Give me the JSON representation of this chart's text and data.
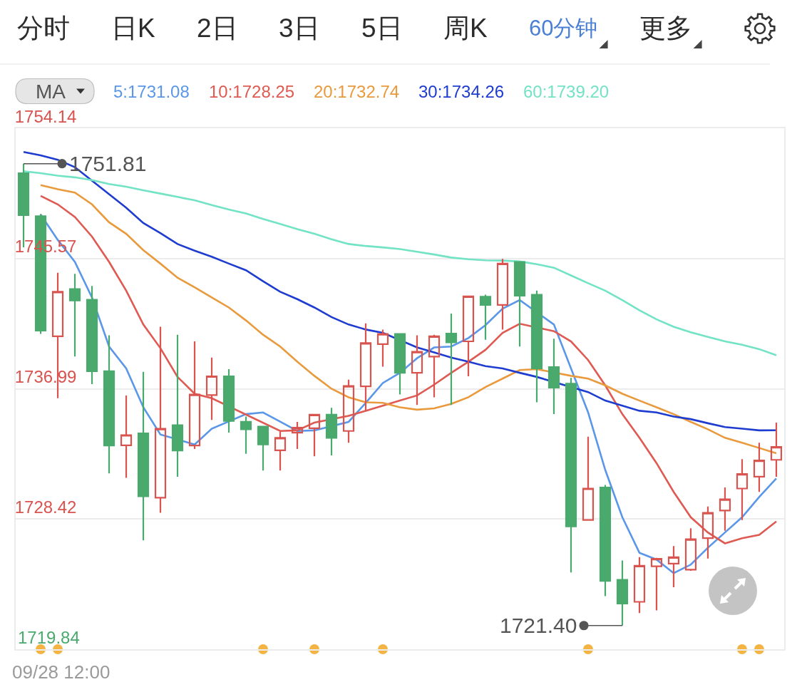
{
  "chart_data": {
    "type": "candlestick",
    "categories": [
      null,
      null,
      null,
      null,
      null,
      null,
      null,
      null,
      null,
      null,
      null,
      null,
      null,
      null,
      null,
      null,
      null,
      null,
      null,
      null,
      null,
      null,
      null,
      null,
      null,
      null,
      null,
      null,
      null,
      null,
      null,
      null,
      null,
      null,
      null,
      null,
      null,
      null,
      null,
      null,
      null,
      null,
      null,
      null,
      null
    ],
    "ohlc": [
      [
        1751.18,
        1751.81,
        1746.3,
        1748.42
      ],
      [
        1748.35,
        1748.5,
        1740.6,
        1740.82
      ],
      [
        1740.44,
        1744.63,
        1736.37,
        1743.38
      ],
      [
        1743.56,
        1744.56,
        1739.11,
        1742.8
      ],
      [
        1742.85,
        1743.76,
        1737.3,
        1738.15
      ],
      [
        1738.15,
        1740.51,
        1731.42,
        1733.25
      ],
      [
        1733.27,
        1736.55,
        1731.13,
        1733.94
      ],
      [
        1734.05,
        1738.1,
        1727.01,
        1729.91
      ],
      [
        1729.82,
        1741.07,
        1728.82,
        1734.36
      ],
      [
        1734.59,
        1740.55,
        1731.2,
        1732.92
      ],
      [
        1733.25,
        1740.11,
        1733.03,
        1736.61
      ],
      [
        1736.57,
        1739.04,
        1734.94,
        1737.81
      ],
      [
        1737.81,
        1738.28,
        1734.1,
        1734.87
      ],
      [
        1734.81,
        1735.16,
        1732.71,
        1734.32
      ],
      [
        1734.5,
        1734.55,
        1731.6,
        1733.32
      ],
      [
        1732.94,
        1734.16,
        1731.6,
        1733.76
      ],
      [
        1734.1,
        1734.81,
        1733.03,
        1734.43
      ],
      [
        1734.39,
        1735.32,
        1732.54,
        1735.28
      ],
      [
        1735.28,
        1735.74,
        1732.6,
        1733.76
      ],
      [
        1734.21,
        1737.59,
        1733.43,
        1737.17
      ],
      [
        1737.15,
        1741.29,
        1735.54,
        1740.0
      ],
      [
        1739.93,
        1740.89,
        1738.44,
        1740.6
      ],
      [
        1740.6,
        1740.62,
        1736.61,
        1738.04
      ],
      [
        1738.04,
        1740.51,
        1735.92,
        1739.42
      ],
      [
        1739.11,
        1740.55,
        1736.43,
        1740.44
      ],
      [
        1740.62,
        1741.94,
        1735.92,
        1740.04
      ],
      [
        1740.11,
        1743.12,
        1737.81,
        1743.07
      ],
      [
        1743.05,
        1743.18,
        1740.22,
        1742.51
      ],
      [
        1742.51,
        1745.54,
        1740.89,
        1745.23
      ],
      [
        1745.34,
        1745.36,
        1739.77,
        1743.12
      ],
      [
        1743.18,
        1743.45,
        1736.1,
        1738.33
      ],
      [
        1738.42,
        1740.29,
        1735.32,
        1737.06
      ],
      [
        1737.32,
        1737.7,
        1724.9,
        1727.93
      ],
      [
        1728.35,
        1733.83,
        1728.3,
        1730.42
      ],
      [
        1730.49,
        1730.65,
        1723.34,
        1724.34
      ],
      [
        1724.41,
        1725.68,
        1721.4,
        1722.85
      ],
      [
        1722.96,
        1725.9,
        1722.22,
        1725.34
      ],
      [
        1725.3,
        1725.86,
        1722.4,
        1725.79
      ],
      [
        1725.48,
        1726.63,
        1723.92,
        1725.9
      ],
      [
        1725.08,
        1727.81,
        1725.0,
        1727.08
      ],
      [
        1727.15,
        1729.24,
        1725.81,
        1728.82
      ],
      [
        1728.97,
        1730.49,
        1727.64,
        1729.71
      ],
      [
        1730.42,
        1732.36,
        1728.35,
        1731.38
      ],
      [
        1731.2,
        1733.43,
        1730.2,
        1732.27
      ],
      [
        1732.31,
        1734.76,
        1731.2,
        1733.16
      ]
    ],
    "colors": [
      "#4aa96c",
      "#4aa96c",
      "#d9534f",
      "#4aa96c",
      "#4aa96c",
      "#4aa96c",
      "#d9534f",
      "#4aa96c",
      "#d9534f",
      "#4aa96c",
      "#d9534f",
      "#d9534f",
      "#4aa96c",
      "#4aa96c",
      "#4aa96c",
      "#d9534f",
      "#d9534f",
      "#d9534f",
      "#4aa96c",
      "#d9534f",
      "#d9534f",
      "#d9534f",
      "#4aa96c",
      "#d9534f",
      "#d9534f",
      "#4aa96c",
      "#d9534f",
      "#4aa96c",
      "#d9534f",
      "#4aa96c",
      "#4aa96c",
      "#4aa96c",
      "#4aa96c",
      "#d9534f",
      "#4aa96c",
      "#4aa96c",
      "#d9534f",
      "#d9534f",
      "#d9534f",
      "#d9534f",
      "#d9534f",
      "#d9534f",
      "#d9534f",
      "#d9534f",
      "#d9534f"
    ],
    "series": [
      {
        "name": "5:1731.08",
        "type": "line",
        "color": "#5b97e8",
        "values": [
          null,
          1748.46,
          1746.79,
          1745.34,
          1743.0,
          1739.77,
          1738.33,
          1735.77,
          1733.98,
          null,
          1733.32,
          1734.36,
          null,
          1735.32,
          1735.43,
          1734.83,
          1734.21,
          1734.25,
          null,
          1734.81,
          1736.06,
          1737.37,
          1738.04,
          1739.0,
          1739.71,
          1739.77,
          1740.33,
          1741.18,
          1742.27,
          1742.83,
          null,
          1741.22,
          1738.33,
          1735.43,
          1731.65,
          1728.53,
          1726.19,
          1725.74,
          1724.85,
          1725.41,
          1726.52,
          1727.53,
          1728.53,
          1729.86,
          1731.08
        ]
      },
      {
        "name": "10:1728.25",
        "type": "line",
        "color": "#de5a52",
        "values": [
          null,
          1749.69,
          1749.13,
          1748.3,
          1747.01,
          1745.34,
          1743.45,
          1741.22,
          1739.66,
          1737.77,
          1736.66,
          1736.37,
          null,
          null,
          null,
          1734.21,
          1734.25,
          1734.76,
          null,
          1735.21,
          1735.54,
          1735.88,
          1736.21,
          1736.55,
          1737.26,
          1738.04,
          1738.77,
          1739.55,
          1740.67,
          1741.27,
          null,
          1740.78,
          1740.11,
          1738.88,
          1737.21,
          1735.32,
          1733.76,
          1732.09,
          1730.2,
          1728.53,
          1727.53,
          1726.81,
          1727.15,
          1727.37,
          1728.25
        ]
      },
      {
        "name": "20:1732.74",
        "type": "line",
        "color": "#e99a3d",
        "values": [
          null,
          1750.4,
          1750.13,
          1749.91,
          1749.13,
          1747.95,
          1747.19,
          1746.12,
          1745.23,
          1744.3,
          1743.67,
          1743.0,
          1742.34,
          1741.49,
          1740.55,
          1739.77,
          1738.77,
          1737.84,
          1736.99,
          1736.43,
          1736.1,
          1736.06,
          1735.77,
          1735.61,
          1735.7,
          1735.99,
          1736.43,
          1737.1,
          1737.66,
          1738.22,
          1738.28,
          null,
          1737.84,
          1737.66,
          1737.21,
          1736.66,
          1736.21,
          1735.77,
          1735.32,
          1734.81,
          1734.32,
          1733.76,
          1733.43,
          1733.09,
          1732.74
        ]
      },
      {
        "name": "30:1734.26",
        "type": "line",
        "color": "#1e3ccf",
        "values": [
          1752.58,
          1752.36,
          1752.07,
          1751.58,
          1750.69,
          1749.8,
          1748.91,
          1747.9,
          1747.24,
          1746.52,
          1746.08,
          1745.68,
          1745.23,
          1744.79,
          1744.07,
          1743.38,
          1742.89,
          1742.34,
          1741.71,
          1741.22,
          1740.89,
          1740.67,
          null,
          1739.71,
          1739.38,
          1739.04,
          1738.77,
          1738.48,
          1738.33,
          1738.04,
          1737.77,
          null,
          null,
          1736.77,
          1736.21,
          1735.88,
          1735.54,
          1735.43,
          1735.16,
          1734.99,
          1734.72,
          1734.47,
          1734.36,
          1734.25,
          1734.26
        ]
      },
      {
        "name": "60:1739.20",
        "type": "line",
        "color": "#72e3c4",
        "values": [
          1751.31,
          1751.18,
          1751.02,
          1750.91,
          1750.73,
          1750.47,
          1750.29,
          1750.06,
          1749.84,
          1749.62,
          1749.4,
          1749.08,
          1748.79,
          1748.53,
          1748.17,
          1747.84,
          1747.5,
          1747.19,
          1746.83,
          1746.52,
          1746.39,
          1746.3,
          1746.19,
          1746.01,
          1745.83,
          1745.63,
          1745.52,
          1745.45,
          1745.43,
          1745.37,
          1745.19,
          1744.96,
          1744.45,
          1743.94,
          1743.45,
          1742.83,
          1742.16,
          1741.56,
          1741.07,
          1740.71,
          1740.4,
          1740.11,
          1739.89,
          1739.6,
          1739.2
        ]
      },
      {
        "type": "scatter",
        "color": "#f3b443",
        "values": [
          null,
          1719.84,
          1719.84,
          null,
          null,
          null,
          null,
          null,
          null,
          null,
          null,
          null,
          null,
          null,
          1719.84,
          null,
          null,
          1719.84,
          null,
          null,
          null,
          1719.84,
          null,
          null,
          null,
          null,
          null,
          null,
          null,
          null,
          null,
          null,
          null,
          1719.84,
          null,
          null,
          null,
          null,
          null,
          null,
          null,
          null,
          1719.84,
          1719.84,
          null
        ]
      }
    ],
    "ylim": [
      1719.84,
      1754.14
    ],
    "yticks": [
      1754.14,
      1745.57,
      1736.99,
      1728.42,
      1719.84
    ],
    "tick_labels": "y",
    "grid": "y",
    "legend": "top left",
    "legend_title": "MA",
    "annotations": [
      "分时",
      "日K",
      "2日",
      "3日",
      "5日",
      "周K",
      "60分钟",
      "更多",
      "09/28 12:00",
      "1751.81",
      "1721.40"
    ]
  }
}
